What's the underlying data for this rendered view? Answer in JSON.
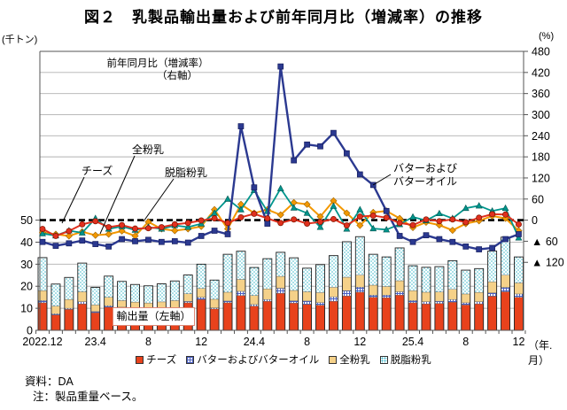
{
  "title": "図２　乳製品輸出量および前年同月比（増減率）の推移",
  "axes": {
    "left_unit": "(千トン)",
    "right_unit": "(%)",
    "x_unit": "（年.月）",
    "left_ticks": [
      0,
      10,
      20,
      30,
      40,
      50
    ],
    "right_ticks": [
      {
        "p": 480,
        "label": "480"
      },
      {
        "p": 420,
        "label": "420"
      },
      {
        "p": 360,
        "label": "360"
      },
      {
        "p": 300,
        "label": "300"
      },
      {
        "p": 240,
        "label": "240"
      },
      {
        "p": 180,
        "label": "180"
      },
      {
        "p": 120,
        "label": "120"
      },
      {
        "p": 60,
        "label": "60"
      },
      {
        "p": 0,
        "label": "0"
      },
      {
        "p": -60,
        "label": "▲ 60"
      },
      {
        "p": -120,
        "label": "▲ 120"
      }
    ],
    "x_ticks": [
      {
        "i": 0,
        "label": "2022.12"
      },
      {
        "i": 4,
        "label": "23.4"
      },
      {
        "i": 8,
        "label": "8"
      },
      {
        "i": 12,
        "label": "12"
      },
      {
        "i": 16,
        "label": "24.4"
      },
      {
        "i": 20,
        "label": "8"
      },
      {
        "i": 24,
        "label": "12"
      },
      {
        "i": 28,
        "label": "25.4"
      },
      {
        "i": 32,
        "label": "8"
      },
      {
        "i": 36,
        "label": "12"
      }
    ]
  },
  "annotations": {
    "yoy_line1": "前年同月比（増減率）",
    "yoy_line2": "（右軸）",
    "cheese": "チーズ",
    "whole": "全粉乳",
    "skim": "脱脂粉乳",
    "butter_line1": "バターおよび",
    "butter_line2": "バターオイル",
    "export_box": "輸出量（左軸）"
  },
  "legend": [
    {
      "key": "cheese",
      "label": "チーズ"
    },
    {
      "key": "butter",
      "label": "バターおよびバターオイル"
    },
    {
      "key": "whole",
      "label": "全粉乳"
    },
    {
      "key": "skim",
      "label": "脱脂粉乳"
    }
  ],
  "footer": {
    "source": "資料：DA",
    "note": "注：製品重量ベース。"
  },
  "colors": {
    "cheese_bar": "#e8421c",
    "cheese_line": "#e0301e",
    "butter_hatch": "#4a5fc1",
    "butter_line": "#2b3990",
    "whole_bar": "#f5d189",
    "whole_line": "#f39800",
    "skim_dot": "#35b6c9",
    "skim_line": "#00958c",
    "grid": "#b0b0b0",
    "axis": "#555555",
    "zero_line": "#000000"
  },
  "chart_data": {
    "type": "combo (stacked bar + line)",
    "n_months": 37,
    "x_range": "2022.12 - 2025.12 (monthly)",
    "bars_unit": "thousand tons (left axis)",
    "bars_ylim": [
      0,
      50
    ],
    "lines_unit": "% year-on-year change (right axis)",
    "lines_ylim": [
      -120,
      480
    ],
    "bar_series": [
      {
        "name": "チーズ",
        "values": [
          12.5,
          7,
          9.5,
          12,
          8,
          10.5,
          10,
          9.4,
          9,
          9.3,
          9.5,
          12.5,
          14,
          9.7,
          12.5,
          15.8,
          11,
          13.2,
          16.8,
          12.4,
          11.8,
          11.4,
          13.2,
          15.6,
          17.3,
          15,
          14.8,
          16,
          12.5,
          12,
          12.2,
          12.8,
          11.5,
          12,
          15.5,
          17.5,
          15
        ]
      },
      {
        "name": "バターおよびバターオイル",
        "values": [
          1,
          0.5,
          0.5,
          1,
          0.5,
          0.7,
          0.5,
          0.4,
          0.4,
          0.4,
          0.5,
          0.6,
          1,
          0.5,
          0.8,
          1.9,
          0.7,
          0.8,
          2.3,
          1,
          1.5,
          1.2,
          2,
          2.4,
          2.3,
          1,
          1.2,
          1.5,
          1,
          1,
          1,
          1.2,
          1,
          1,
          1.5,
          2,
          1.5
        ]
      },
      {
        "name": "全粉乳",
        "values": [
          4.5,
          3.5,
          4,
          4.5,
          3,
          3.8,
          3,
          3,
          3,
          3.2,
          3.5,
          3.5,
          4,
          3.9,
          4,
          5.4,
          4.1,
          4.8,
          5.4,
          4.7,
          4.2,
          4.5,
          4.3,
          6.1,
          5.4,
          4.5,
          3.9,
          5,
          4.5,
          4.3,
          4.2,
          4.6,
          4,
          4.2,
          5,
          5.5,
          5
        ]
      },
      {
        "name": "脱脂粉乳",
        "values": [
          15,
          10,
          10,
          13,
          8,
          9.6,
          8.7,
          8,
          7.8,
          8.2,
          8.9,
          8.5,
          11,
          8.7,
          17.2,
          12.8,
          12.7,
          13.7,
          10.9,
          14.8,
          10.7,
          12.7,
          14.4,
          16.1,
          17.5,
          14,
          13.4,
          14.9,
          11.3,
          11.3,
          11.5,
          13,
          10.8,
          10.8,
          14,
          17.3,
          11.8
        ]
      }
    ],
    "line_series": [
      {
        "name": "全粉乳",
        "marker": "diamond",
        "values": [
          -35,
          -40,
          -45,
          -33,
          -43,
          -40,
          -31,
          -45,
          -5,
          -25,
          -30,
          -25,
          -18,
          30,
          -25,
          45,
          20,
          30,
          15,
          50,
          45,
          10,
          55,
          20,
          -15,
          22,
          26,
          5,
          -21,
          -6,
          -14,
          -29,
          -10,
          -2,
          12,
          5,
          -30
        ]
      },
      {
        "name": "脱脂粉乳",
        "marker": "triangle",
        "values": [
          -38,
          -44,
          -30,
          -36,
          5,
          -25,
          -18,
          -28,
          -20,
          -25,
          -15,
          -20,
          -10,
          20,
          60,
          30,
          85,
          25,
          90,
          35,
          20,
          -20,
          40,
          -25,
          30,
          -24,
          -27,
          -12,
          9,
          -1,
          19,
          5,
          34,
          41,
          26,
          34,
          -50
        ]
      },
      {
        "name": "バターおよびバターオイル",
        "marker": "square",
        "values": [
          -62,
          -73,
          -66,
          -58,
          -68,
          -75,
          -54,
          -60,
          -56,
          -62,
          -60,
          -64,
          -45,
          -30,
          -40,
          267,
          93,
          -10,
          437,
          170,
          215,
          210,
          248,
          190,
          130,
          100,
          26,
          -45,
          -62,
          -43,
          -54,
          -62,
          -75,
          -83,
          -79,
          -54,
          -40
        ]
      },
      {
        "name": "チーズ",
        "marker": "circle",
        "values": [
          -25,
          -45,
          -31,
          -12,
          -3,
          -20,
          -14,
          -24,
          -23,
          -20,
          -12,
          -8,
          -1,
          5,
          -8,
          8,
          18,
          5,
          -8,
          2,
          -10,
          -5,
          3,
          -15,
          10,
          13,
          7,
          -8,
          -14,
          2,
          -3,
          2,
          -6,
          7,
          17,
          16,
          -12
        ]
      }
    ]
  }
}
